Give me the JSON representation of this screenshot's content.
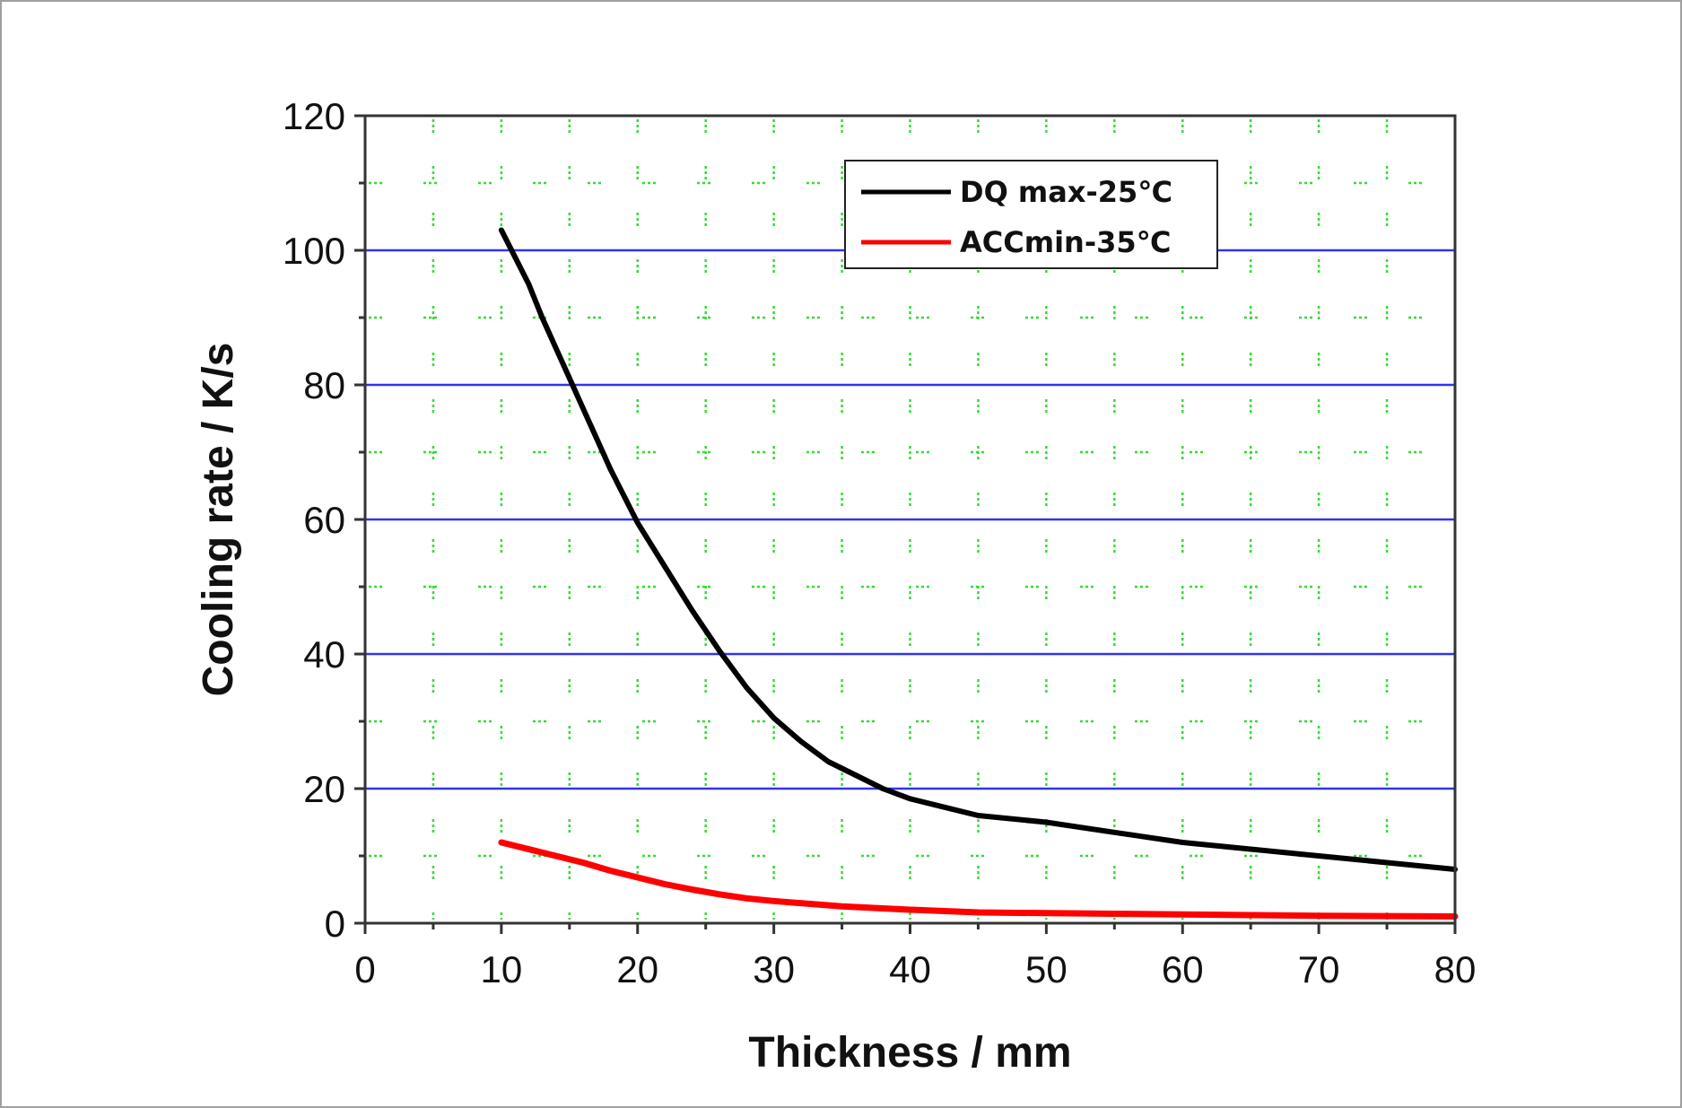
{
  "chart_data": {
    "type": "line",
    "xlabel": "Thickness / mm",
    "ylabel": "Cooling rate / K/s",
    "xlim": [
      0,
      80
    ],
    "ylim": [
      0,
      120
    ],
    "x_ticks": [
      "0",
      "10",
      "20",
      "30",
      "40",
      "50",
      "60",
      "70",
      "80"
    ],
    "y_ticks": [
      "0",
      "20",
      "40",
      "60",
      "80",
      "100",
      "120"
    ],
    "x_tick_values": [
      0,
      10,
      20,
      30,
      40,
      50,
      60,
      70,
      80
    ],
    "y_tick_values": [
      0,
      20,
      40,
      60,
      80,
      100,
      120
    ],
    "grid": {
      "major_y": "solid blue",
      "minor": "dotted green"
    },
    "legend_position": "top-right",
    "series": [
      {
        "name": "DQ max-25℃",
        "color": "#000000",
        "x": [
          10,
          11,
          12,
          13,
          14,
          15,
          16,
          17,
          18,
          19,
          20,
          22,
          24,
          26,
          28,
          30,
          32,
          34,
          36,
          38,
          40,
          42,
          45,
          50,
          55,
          60,
          65,
          70,
          75,
          80
        ],
        "y": [
          103,
          99,
          95,
          90,
          85.5,
          81,
          76.5,
          72,
          67.5,
          63.5,
          59.5,
          53,
          46.5,
          40.5,
          35,
          30.5,
          27,
          24,
          22,
          20,
          18.5,
          17.5,
          16,
          15,
          13.5,
          12,
          11,
          10,
          9,
          8
        ]
      },
      {
        "name": "ACCmin-35℃",
        "color": "#ff0000",
        "x": [
          10,
          12,
          14,
          16,
          18,
          20,
          22,
          24,
          26,
          28,
          30,
          35,
          40,
          45,
          50,
          55,
          60,
          65,
          70,
          75,
          80
        ],
        "y": [
          12,
          11,
          10,
          9,
          7.8,
          6.8,
          5.8,
          5,
          4.3,
          3.7,
          3.3,
          2.5,
          2,
          1.6,
          1.5,
          1.4,
          1.3,
          1.2,
          1.1,
          1.05,
          1
        ]
      }
    ]
  }
}
